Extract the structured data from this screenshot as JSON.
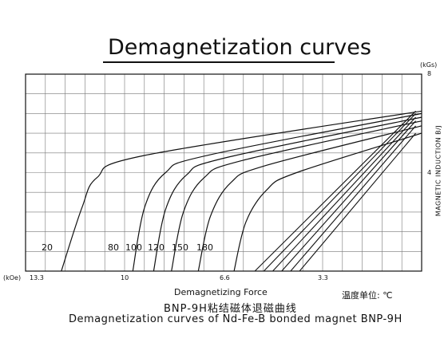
{
  "chart_data": {
    "type": "line",
    "title": "Demagnetization curves",
    "xlabel": "Demagnetizing Force",
    "x_unit": "(kOe)",
    "ylabel": "MAGNETIC INDUCTION B/J",
    "y_unit": "(kGs)",
    "x_ticks": [
      "13.3",
      "10",
      "6.6",
      "3.3"
    ],
    "y_ticks": [
      "8",
      "4"
    ],
    "xlim": [
      13.3,
      0
    ],
    "ylim": [
      0,
      8
    ],
    "grid": true,
    "temperature_labels": [
      "20",
      "80",
      "100",
      "120",
      "150",
      "180"
    ],
    "temperature_note": "温度单位: ℃",
    "series": [
      {
        "name": "20",
        "values": [
          [
            12.1,
            0
          ],
          [
            11.4,
            2.6
          ],
          [
            10.9,
            3.8
          ],
          [
            9.3,
            4.7
          ],
          [
            0,
            6.5
          ]
        ]
      },
      {
        "name": "80",
        "values": [
          [
            9.7,
            0
          ],
          [
            9.3,
            2.6
          ],
          [
            8.6,
            4.0
          ],
          [
            7.2,
            4.7
          ],
          [
            0,
            6.4
          ]
        ]
      },
      {
        "name": "100",
        "values": [
          [
            9.0,
            0
          ],
          [
            8.6,
            2.5
          ],
          [
            7.9,
            3.9
          ],
          [
            6.6,
            4.6
          ],
          [
            0,
            6.25
          ]
        ]
      },
      {
        "name": "120",
        "values": [
          [
            8.4,
            0
          ],
          [
            8.0,
            2.4
          ],
          [
            7.3,
            3.8
          ],
          [
            6.0,
            4.5
          ],
          [
            0,
            6.1
          ]
        ]
      },
      {
        "name": "150",
        "values": [
          [
            7.5,
            0
          ],
          [
            7.1,
            2.2
          ],
          [
            6.4,
            3.6
          ],
          [
            5.2,
            4.3
          ],
          [
            0,
            5.9
          ]
        ]
      },
      {
        "name": "180",
        "values": [
          [
            6.3,
            0
          ],
          [
            5.9,
            2.0
          ],
          [
            5.2,
            3.3
          ],
          [
            4.2,
            4.0
          ],
          [
            0,
            5.6
          ]
        ]
      }
    ],
    "recoil_lines": [
      {
        "name": "20",
        "values": [
          [
            0.2,
            6.5
          ],
          [
            5.6,
            0
          ]
        ]
      },
      {
        "name": "80",
        "values": [
          [
            0.2,
            6.4
          ],
          [
            5.3,
            0
          ]
        ]
      },
      {
        "name": "100",
        "values": [
          [
            0.2,
            6.25
          ],
          [
            5.0,
            0
          ]
        ]
      },
      {
        "name": "120",
        "values": [
          [
            0.2,
            6.1
          ],
          [
            4.7,
            0
          ]
        ]
      },
      {
        "name": "150",
        "values": [
          [
            0.2,
            5.9
          ],
          [
            4.4,
            0
          ]
        ]
      },
      {
        "name": "180",
        "values": [
          [
            0.2,
            5.6
          ],
          [
            4.1,
            0
          ]
        ]
      }
    ]
  },
  "captions": {
    "cn": "BNP-9H粘结磁体退磁曲线",
    "en": "Demagnetization curves of Nd-Fe-B bonded magnet BNP-9H"
  }
}
